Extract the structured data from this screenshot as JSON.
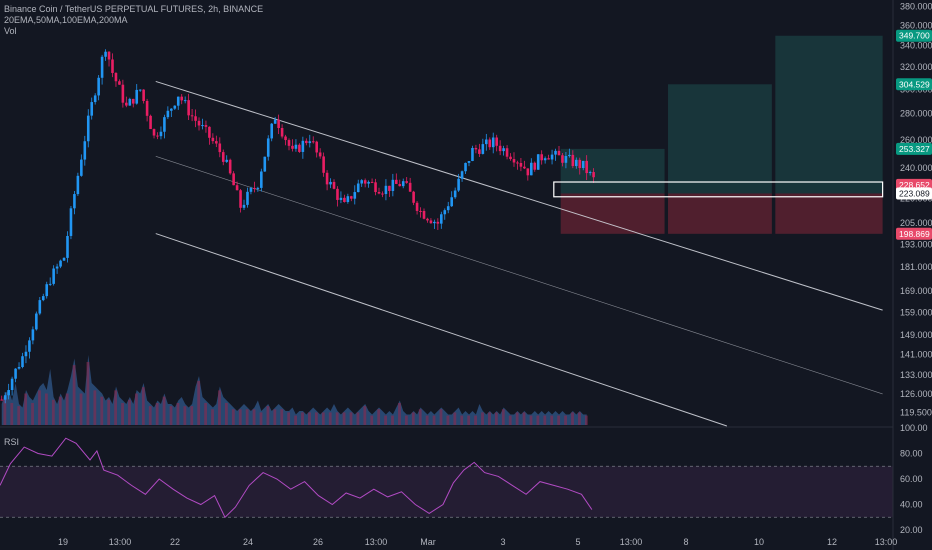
{
  "header": {
    "title": "Binance Coin / TetherUS PERPETUAL FUTURES, 2h, BINANCE",
    "indicators": "20EMA,50MA,100EMA,200MA",
    "volume_label": "Vol"
  },
  "rsi_label": "RSI",
  "colors": {
    "background": "#131722",
    "up": "#2196f3",
    "down": "#e91e63",
    "profit_zone": "#1e4f4f",
    "loss_zone": "#6b2333",
    "rsi_line": "#b24bc4",
    "profit_badge": "#089981",
    "loss_badge": "#e84a6a"
  },
  "chart_data": [
    {
      "type": "candlestick",
      "title": "Binance Coin / TetherUS PERPETUAL FUTURES, 2h, BINANCE",
      "y_scale": "log",
      "ylim": [
        115,
        385
      ],
      "y_ticks": [
        "380.000",
        "360.000",
        "340.000",
        "320.000",
        "300.000",
        "280.000",
        "260.000",
        "240.000",
        "220.000",
        "205.000",
        "193.000",
        "181.000",
        "169.000",
        "159.000",
        "149.000",
        "141.000",
        "133.000",
        "126.000",
        "119.500"
      ],
      "x_ticks": [
        "19",
        "13:00",
        "22",
        "24",
        "26",
        "13:00",
        "Mar",
        "3",
        "5",
        "13:00",
        "8",
        "10",
        "12",
        "13:00"
      ],
      "price_path": [
        {
          "t": 0,
          "price": 124
        },
        {
          "t": 6,
          "price": 140
        },
        {
          "t": 14,
          "price": 175
        },
        {
          "t": 18,
          "price": 186
        },
        {
          "t": 22,
          "price": 235
        },
        {
          "t": 27,
          "price": 300
        },
        {
          "t": 30,
          "price": 340
        },
        {
          "t": 32,
          "price": 315
        },
        {
          "t": 36,
          "price": 285
        },
        {
          "t": 40,
          "price": 300
        },
        {
          "t": 44,
          "price": 262
        },
        {
          "t": 47,
          "price": 275
        },
        {
          "t": 51,
          "price": 296
        },
        {
          "t": 55,
          "price": 278
        },
        {
          "t": 60,
          "price": 262
        },
        {
          "t": 64,
          "price": 248
        },
        {
          "t": 69,
          "price": 215
        },
        {
          "t": 74,
          "price": 230
        },
        {
          "t": 79,
          "price": 278
        },
        {
          "t": 84,
          "price": 250
        },
        {
          "t": 89,
          "price": 262
        },
        {
          "t": 94,
          "price": 232
        },
        {
          "t": 99,
          "price": 215
        },
        {
          "t": 104,
          "price": 232
        },
        {
          "t": 110,
          "price": 226
        },
        {
          "t": 116,
          "price": 230
        },
        {
          "t": 121,
          "price": 212
        },
        {
          "t": 126,
          "price": 205
        },
        {
          "t": 131,
          "price": 225
        },
        {
          "t": 136,
          "price": 252
        },
        {
          "t": 142,
          "price": 258
        },
        {
          "t": 148,
          "price": 248
        },
        {
          "t": 152,
          "price": 238
        },
        {
          "t": 157,
          "price": 250
        },
        {
          "t": 163,
          "price": 246
        },
        {
          "t": 168,
          "price": 241
        },
        {
          "t": 171,
          "price": 232
        }
      ],
      "volume_relative": [
        0.3,
        0.45,
        0.5,
        0.35,
        0.6,
        0.3,
        0.25,
        0.5,
        0.4,
        0.35,
        0.45,
        0.55,
        0.6,
        0.5,
        0.8,
        0.4,
        0.3,
        0.45,
        0.35,
        0.5,
        0.7,
        0.95,
        0.55,
        0.5,
        0.45,
        1.0,
        0.6,
        0.55,
        0.5,
        0.45,
        0.35,
        0.4,
        0.3,
        0.55,
        0.4,
        0.35,
        0.3,
        0.4,
        0.3,
        0.5,
        0.45,
        0.6,
        0.35,
        0.3,
        0.25,
        0.35,
        0.3,
        0.45,
        0.3,
        0.3,
        0.25,
        0.35,
        0.4,
        0.3,
        0.25,
        0.3,
        0.55,
        0.7,
        0.4,
        0.35,
        0.3,
        0.25,
        0.3,
        0.55,
        0.4,
        0.35,
        0.3,
        0.25,
        0.2,
        0.25,
        0.3,
        0.25,
        0.2,
        0.25,
        0.35,
        0.2,
        0.25,
        0.3,
        0.2,
        0.25,
        0.3,
        0.25,
        0.2,
        0.2,
        0.25,
        0.15,
        0.2,
        0.2,
        0.15,
        0.2,
        0.25,
        0.2,
        0.15,
        0.2,
        0.25,
        0.2,
        0.3,
        0.2,
        0.15,
        0.2,
        0.25,
        0.2,
        0.15,
        0.2,
        0.25,
        0.3,
        0.2,
        0.15,
        0.2,
        0.25,
        0.2,
        0.15,
        0.2,
        0.15,
        0.25,
        0.35,
        0.2,
        0.15,
        0.15,
        0.2,
        0.15,
        0.25,
        0.2,
        0.15,
        0.2,
        0.15,
        0.2,
        0.25,
        0.2,
        0.15,
        0.15,
        0.2,
        0.25,
        0.15,
        0.2,
        0.15,
        0.2,
        0.15,
        0.3,
        0.2,
        0.15,
        0.2,
        0.15,
        0.2,
        0.15,
        0.25,
        0.2,
        0.15,
        0.15,
        0.2,
        0.15,
        0.2,
        0.15,
        0.15,
        0.2,
        0.15,
        0.2,
        0.15,
        0.2,
        0.15,
        0.2,
        0.15,
        0.2,
        0.15,
        0.15,
        0.2,
        0.15,
        0.2,
        0.15,
        0.15
      ],
      "channel_lines": [
        {
          "name": "upper",
          "start": {
            "t": 45,
            "price": 307
          },
          "end": {
            "t": 255,
            "price": 160
          }
        },
        {
          "name": "middle",
          "start": {
            "t": 45,
            "price": 248
          },
          "end": {
            "t": 255,
            "price": 126
          }
        },
        {
          "name": "lower",
          "start": {
            "t": 45,
            "price": 199
          },
          "end": {
            "t": 210,
            "price": 115
          }
        }
      ],
      "position_boxes": [
        {
          "t_start": 162,
          "t_end": 192,
          "target": 253.327,
          "entry": 223.089,
          "stop": 198.869
        },
        {
          "t_start": 193,
          "t_end": 223,
          "target": 304.529,
          "entry": 223.089,
          "stop": 198.869
        },
        {
          "t_start": 224,
          "t_end": 255,
          "target": 349.7,
          "entry": 223.089,
          "stop": 198.869
        }
      ],
      "entry_box": {
        "t_start": 160,
        "t_end": 255,
        "top": 230.5,
        "bottom": 221
      },
      "price_badges": [
        {
          "label": "349.700",
          "price": 349.7,
          "kind": "profit"
        },
        {
          "label": "304.529",
          "price": 304.529,
          "kind": "profit"
        },
        {
          "label": "253.327",
          "price": 253.327,
          "kind": "profit"
        },
        {
          "label": "228.652",
          "price": 228.652,
          "kind": "loss"
        },
        {
          "label": "223.089",
          "price": 223.089,
          "kind": "entry"
        },
        {
          "label": "198.869",
          "price": 198.869,
          "kind": "loss"
        }
      ]
    },
    {
      "type": "line",
      "title": "RSI",
      "ylim": [
        20,
        100
      ],
      "y_ticks": [
        "100.00",
        "80.00",
        "60.00",
        "40.00",
        "20.00"
      ],
      "overbought": 70,
      "oversold": 30,
      "series": [
        {
          "t": 0,
          "value": 55
        },
        {
          "t": 3,
          "value": 72
        },
        {
          "t": 7,
          "value": 85
        },
        {
          "t": 11,
          "value": 80
        },
        {
          "t": 15,
          "value": 78
        },
        {
          "t": 19,
          "value": 92
        },
        {
          "t": 22,
          "value": 88
        },
        {
          "t": 26,
          "value": 75
        },
        {
          "t": 28,
          "value": 82
        },
        {
          "t": 30,
          "value": 67
        },
        {
          "t": 34,
          "value": 63
        },
        {
          "t": 38,
          "value": 55
        },
        {
          "t": 42,
          "value": 48
        },
        {
          "t": 46,
          "value": 60
        },
        {
          "t": 50,
          "value": 52
        },
        {
          "t": 54,
          "value": 45
        },
        {
          "t": 58,
          "value": 40
        },
        {
          "t": 62,
          "value": 47
        },
        {
          "t": 65,
          "value": 30
        },
        {
          "t": 68,
          "value": 38
        },
        {
          "t": 72,
          "value": 55
        },
        {
          "t": 76,
          "value": 65
        },
        {
          "t": 80,
          "value": 60
        },
        {
          "t": 84,
          "value": 52
        },
        {
          "t": 88,
          "value": 58
        },
        {
          "t": 92,
          "value": 47
        },
        {
          "t": 96,
          "value": 40
        },
        {
          "t": 100,
          "value": 49
        },
        {
          "t": 104,
          "value": 45
        },
        {
          "t": 108,
          "value": 52
        },
        {
          "t": 112,
          "value": 46
        },
        {
          "t": 116,
          "value": 50
        },
        {
          "t": 120,
          "value": 40
        },
        {
          "t": 124,
          "value": 33
        },
        {
          "t": 128,
          "value": 40
        },
        {
          "t": 131,
          "value": 57
        },
        {
          "t": 134,
          "value": 67
        },
        {
          "t": 137,
          "value": 73
        },
        {
          "t": 140,
          "value": 65
        },
        {
          "t": 144,
          "value": 62
        },
        {
          "t": 148,
          "value": 55
        },
        {
          "t": 152,
          "value": 48
        },
        {
          "t": 156,
          "value": 58
        },
        {
          "t": 160,
          "value": 55
        },
        {
          "t": 164,
          "value": 52
        },
        {
          "t": 168,
          "value": 48
        },
        {
          "t": 171,
          "value": 36
        }
      ]
    }
  ]
}
